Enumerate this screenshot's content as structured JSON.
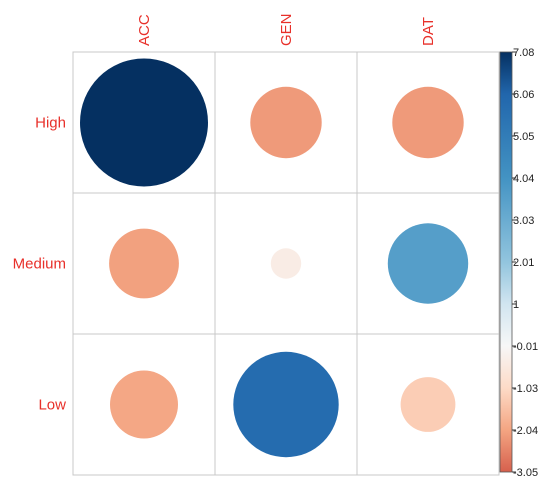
{
  "chart_data": {
    "type": "heatmap",
    "subtype": "correlation-circles",
    "title": "",
    "rows": [
      "High",
      "Medium",
      "Low"
    ],
    "columns": [
      "ACC",
      "GEN",
      "DAT"
    ],
    "values": [
      [
        7.08,
        -2.2,
        -2.2
      ],
      [
        -2.1,
        -0.4,
        2.8
      ],
      [
        -2.0,
        4.8,
        -1.3
      ]
    ],
    "scale": {
      "min": -3.05,
      "max": 7.08,
      "ticks": [
        "7.08",
        "6.06",
        "5.05",
        "4.04",
        "3.03",
        "2.01",
        "1",
        "-0.01",
        "-1.03",
        "-2.04",
        "-3.05"
      ]
    },
    "label_color": "#e8302a",
    "colors": {
      "high": "#053061",
      "mid": "#f7f7f7",
      "low": "#d6604d"
    },
    "legend_position": "right",
    "grid": true
  }
}
